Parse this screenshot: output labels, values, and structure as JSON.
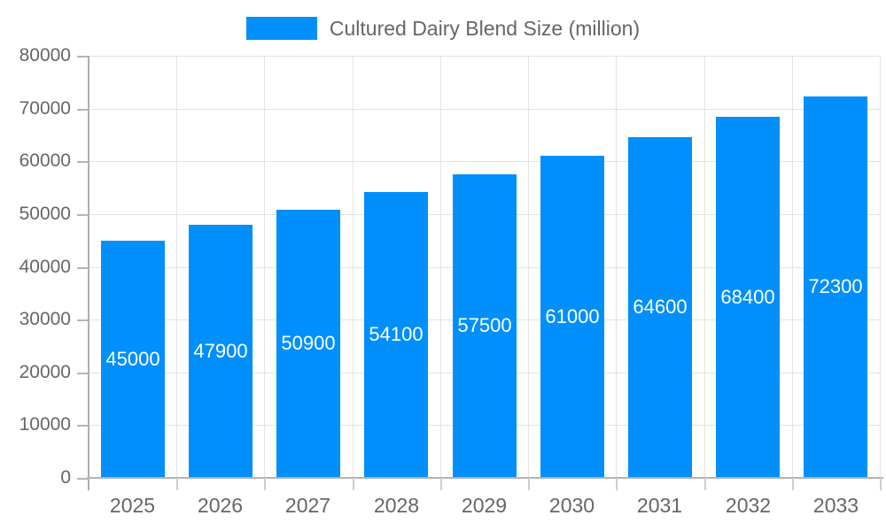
{
  "chart_data": {
    "type": "bar",
    "title": "",
    "categories": [
      "2025",
      "2026",
      "2027",
      "2028",
      "2029",
      "2030",
      "2031",
      "2032",
      "2033"
    ],
    "series": [
      {
        "name": "Cultured Dairy Blend Size (million)",
        "values": [
          45000,
          47900,
          50900,
          54100,
          57500,
          61000,
          64600,
          68400,
          72300
        ]
      }
    ],
    "value_labels": [
      "45000",
      "47900",
      "50900",
      "54100",
      "57500",
      "61000",
      "64600",
      "68400",
      "72300"
    ],
    "ytick_labels": [
      "0",
      "10000",
      "20000",
      "30000",
      "40000",
      "50000",
      "60000",
      "70000",
      "80000"
    ],
    "ylim": [
      0,
      80000
    ],
    "ytick_step": 10000,
    "xlabel": "",
    "ylabel": "",
    "grid": true,
    "legend_position": "top",
    "colors": {
      "bar": "#008FFB",
      "axis_text": "#666666",
      "grid_line": "#e3e3e3",
      "axis_line": "#b0b0b0",
      "value_label": "#ffffff"
    }
  }
}
